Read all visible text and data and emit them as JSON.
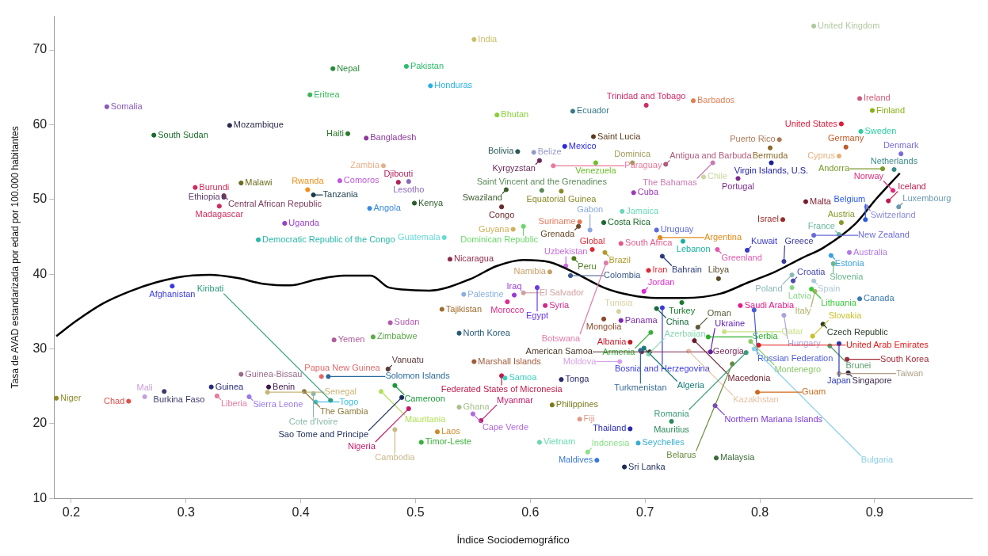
{
  "chart_data": {
    "type": "scatter",
    "xlabel": "Índice Sociodemográfico",
    "ylabel": "Tasa de AVAD estandarizada por edad por 100.000 habitantes",
    "xlim": [
      0.185,
      0.985
    ],
    "ylim": [
      10,
      74.5
    ],
    "xticks": [
      0.2,
      0.3,
      0.4,
      0.5,
      0.6,
      0.7,
      0.8,
      0.9
    ],
    "yticks": [
      10,
      20,
      30,
      40,
      50,
      60,
      70
    ],
    "marker": "circle",
    "legend": false,
    "series": [
      {
        "type": "scatter",
        "x": [
          0.187,
          0.25,
          0.264,
          0.281,
          0.322,
          0.327,
          0.348,
          0.355,
          0.372,
          0.371,
          0.403,
          0.411,
          0.413,
          0.426,
          0.418,
          0.424,
          0.429,
          0.463,
          0.476,
          0.288,
          0.363,
          0.231,
          0.272,
          0.338,
          0.428,
          0.408,
          0.441,
          0.457,
          0.434,
          0.485,
          0.308,
          0.348,
          0.406,
          0.333,
          0.333,
          0.329,
          0.411,
          0.386,
          0.46,
          0.499,
          0.494,
          0.472,
          0.492,
          0.551,
          0.513,
          0.571,
          0.589,
          0.603,
          0.63,
          0.637,
          0.701,
          0.655,
          0.657,
          0.689,
          0.742,
          0.718,
          0.608,
          0.61,
          0.627,
          0.62,
          0.579,
          0.575,
          0.643,
          0.642,
          0.664,
          0.68,
          0.69,
          0.679,
          0.71,
          0.713,
          0.733,
          0.594,
          0.525,
          0.585,
          0.631,
          0.654,
          0.665,
          0.652,
          0.638,
          0.617,
          0.53,
          0.523,
          0.478,
          0.538,
          0.542,
          0.58,
          0.586,
          0.594,
          0.613,
          0.606,
          0.635,
          0.666,
          0.703,
          0.715,
          0.699,
          0.732,
          0.764,
          0.763,
          0.789,
          0.821,
          0.829,
          0.828,
          0.847,
          0.828,
          0.845,
          0.848,
          0.887,
          0.862,
          0.864,
          0.878,
          0.869,
          0.847,
          0.871,
          0.82,
          0.84,
          0.893,
          0.892,
          0.921,
          0.912,
          0.916,
          0.917,
          0.907,
          0.869,
          0.923,
          0.875,
          0.888,
          0.871,
          0.898,
          0.887,
          0.847,
          0.817,
          0.809,
          0.81,
          0.759,
          0.751,
          0.781,
          0.664,
          0.679,
          0.677,
          0.71,
          0.715,
          0.705,
          0.687,
          0.697,
          0.696,
          0.699,
          0.704,
          0.703,
          0.678,
          0.743,
          0.757,
          0.738,
          0.746,
          0.755,
          0.769,
          0.783,
          0.795,
          0.821,
          0.788,
          0.776,
          0.792,
          0.799,
          0.795,
          0.798,
          0.761,
          0.762,
          0.723,
          0.687,
          0.694,
          0.682,
          0.846,
          0.855,
          0.861,
          0.869,
          0.876,
          0.877,
          0.869,
          0.482,
          0.47,
          0.488,
          0.494,
          0.505,
          0.482,
          0.519,
          0.538,
          0.551,
          0.575,
          0.578,
          0.55,
          0.557,
          0.608,
          0.619,
          0.627,
          0.643,
          0.658,
          0.65
        ],
        "values": [
          23.4,
          23.0,
          23.6,
          24.3,
          24.9,
          23.7,
          26.6,
          23.6,
          24.9,
          24.2,
          24.3,
          24.0,
          22.9,
          23.1,
          26.3,
          26.3,
          31.2,
          31.6,
          27.3,
          38.4,
          44.6,
          62.4,
          58.6,
          59.9,
          67.5,
          64.0,
          58.8,
          58.2,
          52.5,
          52.3,
          51.6,
          52.2,
          51.3,
          50.5,
          50.3,
          49.1,
          50.6,
          46.8,
          48.8,
          49.5,
          52.4,
          54.5,
          67.8,
          71.4,
          65.2,
          61.3,
          56.4,
          56.3,
          57.1,
          61.8,
          62.6,
          58.4,
          54.9,
          54.9,
          63.2,
          54.7,
          55.2,
          51.2,
          51.1,
          54.5,
          51.3,
          49.0,
          47.0,
          46.4,
          46.9,
          48.4,
          50.9,
          44.1,
          45.9,
          44.9,
          44.4,
          46.4,
          44.9,
          46.0,
          41.1,
          43.3,
          42.9,
          45.9,
          42.1,
          40.3,
          42.0,
          35.3,
          33.5,
          32.1,
          37.3,
          36.3,
          37.2,
          37.5,
          35.8,
          38.2,
          39.8,
          41.5,
          40.5,
          42.4,
          37.7,
          36.2,
          39.4,
          43.3,
          43.2,
          41.7,
          39.1,
          39.9,
          39.1,
          38.2,
          38.0,
          37.7,
          36.7,
          42.5,
          41.4,
          42.9,
          45.3,
          45.2,
          46.9,
          47.3,
          49.7,
          49.0,
          47.3,
          49.0,
          49.8,
          51.2,
          54.0,
          54.1,
          55.8,
          56.1,
          57.0,
          59.1,
          60.1,
          61.9,
          63.5,
          73.2,
          58.0,
          56.9,
          54.9,
          54.9,
          53.0,
          52.8,
          34.0,
          33.8,
          35.0,
          35.4,
          35.5,
          32.2,
          30.9,
          29.6,
          29.8,
          30.1,
          29.6,
          29.3,
          28.3,
          31.1,
          29.6,
          29.7,
          32.9,
          31.6,
          32.3,
          35.8,
          35.2,
          34.5,
          29.5,
          28.0,
          31.0,
          30.5,
          30.0,
          24.2,
          22.4,
          15.4,
          20.3,
          19.3,
          17.4,
          14.2,
          31.7,
          33.3,
          30.4,
          30.7,
          28.6,
          26.8,
          26.7,
          25.1,
          24.3,
          23.5,
          22.0,
          17.5,
          19.2,
          18.9,
          22.2,
          28.3,
          26.4,
          26.1,
          21.3,
          20.4,
          17.5,
          22.5,
          25.9,
          20.6,
          15.1,
          16.2
        ],
        "colors": [
          "#8b8b2a",
          "#e0504a",
          "#c8a0d8",
          "#3a3a6a",
          "#2a2a7a",
          "#e87aa0",
          "#9a6a8a",
          "#9a7ae8",
          "#3a1a4a",
          "#c8b47a",
          "#8a7a3a",
          "#8ab8a8",
          "#40c0e0",
          "#2a9a7a",
          "#e06a6a",
          "#2a6a9a",
          "#b05a9a",
          "#5aaa4a",
          "#5a3a3a",
          "#3a3ae0",
          "#2ab8a8",
          "#8a5ab8",
          "#1a6a2a",
          "#2a2a4a",
          "#2a8a3a",
          "#3ab85a",
          "#2a7a2a",
          "#8a3a9a",
          "#c05ad8",
          "#b0205a",
          "#d02a5a",
          "#6a6a1a",
          "#f0901a",
          "#7a3a5a",
          "#5a3a6a",
          "#d02a5a",
          "#1a3a4a",
          "#9a40c8",
          "#3a8ae0",
          "#2a5a2a",
          "#8a6ab8",
          "#e8b08a",
          "#2ac06a",
          "#c8c06a",
          "#2ab0e0",
          "#8ad03a",
          "#2a5a5a",
          "#9a9ac8",
          "#2a2ae0",
          "#3a7a8a",
          "#d02a6a",
          "#5a3a1a",
          "#6ac02a",
          "#a09a5a",
          "#e0805a",
          "#b05a7a",
          "#6a2a5a",
          "#5a8a5a",
          "#8a8a2a",
          "#e87a9a",
          "#3a5a2a",
          "#6a2a2a",
          "#e07a5a",
          "#6a4a2a",
          "#1a6a2a",
          "#6ad8b8",
          "#9a3ab8",
          "#e05a8a",
          "#5a6ad8",
          "#e08a1a",
          "#1ab0a0",
          "#6ad86a",
          "#6ad8d8",
          "#d0b05a",
          "#c86ae0",
          "#e02a3a",
          "#b09a2a",
          "#8aa8e0",
          "#4a7a1a",
          "#c8a06a",
          "#8a2a4a",
          "#a06a2a",
          "#b05ab0",
          "#2a5a7a",
          "#8ab0e0",
          "#e02a8a",
          "#9a3ad8",
          "#d0a0a0",
          "#d02a8a",
          "#6a3ae0",
          "#3a5a8a",
          "#e07aa8",
          "#e02a3a",
          "#2a3a7a",
          "#e02ad0",
          "#1a7a2a",
          "#5a4a2a",
          "#e05ab0",
          "#3a3ac8",
          "#3a3a9a",
          "#4a4ab0",
          "#8ab8b8",
          "#b0c8d8",
          "#8ad88a",
          "#3ac83a",
          "#b0b06a",
          "#3a7ab0",
          "#3aa0e0",
          "#6ab88a",
          "#b07ae0",
          "#6ab89a",
          "#6a6ad8",
          "#8a9a2a",
          "#9a2a2a",
          "#7a1a2a",
          "#8a8ad8",
          "#2a5ae0",
          "#6a9ab0",
          "#c01a4a",
          "#e02a7a",
          "#3a8a8a",
          "#7a9a2a",
          "#e8b07a",
          "#7a6ad8",
          "#c05a2a",
          "#2ad0a0",
          "#e01a3a",
          "#8ab01a",
          "#d05a7a",
          "#b0c8a0",
          "#b07a5a",
          "#8a6a2a",
          "#1a1a9a",
          "#c87ab0",
          "#c8d8a0",
          "#7a2a8a",
          "#8a4a2a",
          "#7a2ab0",
          "#d8d0a0",
          "#1a6a3a",
          "#3a3ae0",
          "#3ab03a",
          "#c01a2a",
          "#7a2a5a",
          "#3a6a9a",
          "#1a7a7a",
          "#4a3a2a",
          "#8ad8b0",
          "#d8a0e8",
          "#6a1a2a",
          "#5a1ab0",
          "#e8c0a0",
          "#5a5a3a",
          "#2ab02a",
          "#c8e08a",
          "#e01a8a",
          "#4a5ad8",
          "#b0a0e0",
          "#3a9a7a",
          "#6a8a3a",
          "#8ac86a",
          "#e01a1a",
          "#8ad0e8",
          "#d06a1a",
          "#7a3ad8",
          "#3a6a3a",
          "#2a8a5a",
          "#2a2ab0",
          "#3ab0d0",
          "#1a2a5a",
          "#c8c02a",
          "#2a3a2a",
          "#5a9a6a",
          "#2a3ab0",
          "#a02a3a",
          "#3a2a4a",
          "#b0a08a",
          "#1a9a3a",
          "#b0e05a",
          "#1a2a5a",
          "#c01a6a",
          "#3ab03a",
          "#c8b88a",
          "#d08a2a",
          "#a8c08a",
          "#a05a3a",
          "#c01a4a",
          "#3ad0c0",
          "#b06ae0",
          "#c01a6a",
          "#6ad8b0",
          "#7a7a1a",
          "#2a2a6a",
          "#e09a8a",
          "#3a7ad8",
          "#8ae08a"
        ]
      },
      {
        "type": "line",
        "color": "#000000",
        "marker": "none",
        "x": [
          0.187,
          0.204,
          0.228,
          0.251,
          0.274,
          0.298,
          0.321,
          0.344,
          0.368,
          0.391,
          0.414,
          0.438,
          0.461,
          0.477,
          0.512,
          0.547,
          0.571,
          0.594,
          0.617,
          0.641,
          0.664,
          0.687,
          0.71,
          0.734,
          0.766,
          0.79,
          0.813,
          0.836,
          0.855,
          0.883,
          0.901,
          0.922
        ],
        "values": [
          31.7,
          33.7,
          36.1,
          37.7,
          38.9,
          39.7,
          39.9,
          39.5,
          38.7,
          38.5,
          39.3,
          39.8,
          39.8,
          38.2,
          37.8,
          39.3,
          41.1,
          41.9,
          41.6,
          40.0,
          38.2,
          37.2,
          36.8,
          36.8,
          37.4,
          38.9,
          40.3,
          42.1,
          43.5,
          46.7,
          50.0,
          53.5
        ]
      }
    ],
    "annotations": [
      {
        "text": "Niger",
        "x": 0.187,
        "y": 23.4
      },
      {
        "text": "Chad",
        "x": 0.25,
        "y": 23.0
      },
      {
        "text": "Mali",
        "x": 0.264,
        "y": 23.6
      },
      {
        "text": "Burkina Faso",
        "x": 0.281,
        "y": 24.3
      },
      {
        "text": "Guinea",
        "x": 0.322,
        "y": 24.9
      },
      {
        "text": "Liberia",
        "x": 0.327,
        "y": 23.7
      },
      {
        "text": "Guinea-Bissau",
        "x": 0.348,
        "y": 26.6
      },
      {
        "text": "Sierra Leone",
        "x": 0.355,
        "y": 23.6
      },
      {
        "text": "Benin",
        "x": 0.372,
        "y": 24.9
      },
      {
        "text": "Senegal",
        "x": 0.371,
        "y": 24.2
      },
      {
        "text": "The Gambia",
        "x": 0.403,
        "y": 24.3
      },
      {
        "text": "Cote d'Ivoire",
        "x": 0.411,
        "y": 24.0
      },
      {
        "text": "Togo",
        "x": 0.413,
        "y": 22.9
      },
      {
        "text": "Kiribati",
        "x": 0.426,
        "y": 23.1
      },
      {
        "text": "Papua New Guinea",
        "x": 0.418,
        "y": 26.3
      },
      {
        "text": "Solomon Islands",
        "x": 0.424,
        "y": 26.3
      },
      {
        "text": "Yemen",
        "x": 0.429,
        "y": 31.2
      },
      {
        "text": "Zimbabwe",
        "x": 0.463,
        "y": 31.6
      },
      {
        "text": "Vanuatu",
        "x": 0.476,
        "y": 27.3
      },
      {
        "text": "Afghanistan",
        "x": 0.288,
        "y": 38.4
      },
      {
        "text": "Democratic Republic of the Congo",
        "x": 0.363,
        "y": 44.6
      },
      {
        "text": "Somalia",
        "x": 0.231,
        "y": 62.4
      },
      {
        "text": "South Sudan",
        "x": 0.272,
        "y": 58.6
      },
      {
        "text": "Mozambique",
        "x": 0.338,
        "y": 59.9
      },
      {
        "text": "Nepal",
        "x": 0.428,
        "y": 67.5
      },
      {
        "text": "Eritrea",
        "x": 0.408,
        "y": 64.0
      },
      {
        "text": "Haiti",
        "x": 0.441,
        "y": 58.8
      },
      {
        "text": "Bangladesh",
        "x": 0.457,
        "y": 58.2
      },
      {
        "text": "Comoros",
        "x": 0.434,
        "y": 52.5
      },
      {
        "text": "Djibouti",
        "x": 0.485,
        "y": 52.3
      },
      {
        "text": "Burundi",
        "x": 0.308,
        "y": 51.6
      },
      {
        "text": "Malawi",
        "x": 0.348,
        "y": 52.2
      },
      {
        "text": "Rwanda",
        "x": 0.406,
        "y": 51.3
      },
      {
        "text": "Central African Republic",
        "x": 0.333,
        "y": 50.5
      },
      {
        "text": "Ethiopia",
        "x": 0.333,
        "y": 50.3
      },
      {
        "text": "Madagascar",
        "x": 0.329,
        "y": 49.1
      },
      {
        "text": "Tanzania",
        "x": 0.411,
        "y": 50.6
      },
      {
        "text": "Uganda",
        "x": 0.386,
        "y": 46.8
      },
      {
        "text": "Angola",
        "x": 0.46,
        "y": 48.8
      },
      {
        "text": "Kenya",
        "x": 0.499,
        "y": 49.5
      },
      {
        "text": "Lesotho",
        "x": 0.494,
        "y": 52.4
      },
      {
        "text": "Zambia",
        "x": 0.472,
        "y": 54.5
      },
      {
        "text": "Pakistan",
        "x": 0.492,
        "y": 67.8
      },
      {
        "text": "India",
        "x": 0.551,
        "y": 71.4
      },
      {
        "text": "Honduras",
        "x": 0.513,
        "y": 65.2
      },
      {
        "text": "Bhutan",
        "x": 0.571,
        "y": 61.3
      },
      {
        "text": "Bolivia",
        "x": 0.589,
        "y": 56.4
      },
      {
        "text": "Belize",
        "x": 0.603,
        "y": 56.3
      },
      {
        "text": "Mexico",
        "x": 0.63,
        "y": 57.1
      },
      {
        "text": "Ecuador",
        "x": 0.637,
        "y": 61.8
      },
      {
        "text": "Trinidad and Tobago",
        "x": 0.701,
        "y": 62.6
      },
      {
        "text": "Saint Lucia",
        "x": 0.655,
        "y": 58.4
      },
      {
        "text": "Venezuela",
        "x": 0.657,
        "y": 54.9
      },
      {
        "text": "Dominica",
        "x": 0.689,
        "y": 54.9
      },
      {
        "text": "Barbados",
        "x": 0.742,
        "y": 63.2
      },
      {
        "text": "Antigua and Barbuda",
        "x": 0.718,
        "y": 54.7
      },
      {
        "text": "Kyrgyzstan",
        "x": 0.608,
        "y": 55.2
      },
      {
        "text": "Saint Vincent and the Grenadines",
        "x": 0.61,
        "y": 51.2
      },
      {
        "text": "Equatorial Guinea",
        "x": 0.627,
        "y": 51.1
      },
      {
        "text": "Paraguay",
        "x": 0.62,
        "y": 54.5
      },
      {
        "text": "Swaziland",
        "x": 0.579,
        "y": 51.3
      },
      {
        "text": "Congo",
        "x": 0.575,
        "y": 49.0
      },
      {
        "text": "Suriname",
        "x": 0.643,
        "y": 47.0
      },
      {
        "text": "Grenada",
        "x": 0.642,
        "y": 46.4
      },
      {
        "text": "Costa Rica",
        "x": 0.664,
        "y": 46.9
      },
      {
        "text": "Jamaica",
        "x": 0.68,
        "y": 48.4
      },
      {
        "text": "Cuba",
        "x": 0.69,
        "y": 50.9
      },
      {
        "text": "South Africa",
        "x": 0.679,
        "y": 44.1
      },
      {
        "text": "Uruguay",
        "x": 0.71,
        "y": 45.9
      },
      {
        "text": "Argentina",
        "x": 0.713,
        "y": 44.9
      },
      {
        "text": "Lebanon",
        "x": 0.733,
        "y": 44.4
      },
      {
        "text": "Dominican Republic",
        "x": 0.594,
        "y": 46.4
      },
      {
        "text": "Guatemala",
        "x": 0.525,
        "y": 44.9
      },
      {
        "text": "Guyana",
        "x": 0.585,
        "y": 46.0
      },
      {
        "text": "Uzbekistan",
        "x": 0.631,
        "y": 41.1
      },
      {
        "text": "Global",
        "x": 0.654,
        "y": 43.3
      },
      {
        "text": "Brazil",
        "x": 0.665,
        "y": 42.9
      },
      {
        "text": "Gabon",
        "x": 0.652,
        "y": 45.9
      },
      {
        "text": "Peru",
        "x": 0.638,
        "y": 42.1
      },
      {
        "text": "Namibia",
        "x": 0.617,
        "y": 40.3
      },
      {
        "text": "Nicaragua",
        "x": 0.53,
        "y": 42.0
      },
      {
        "text": "Tajikistan",
        "x": 0.523,
        "y": 35.3
      },
      {
        "text": "Sudan",
        "x": 0.478,
        "y": 33.5
      },
      {
        "text": "North Korea",
        "x": 0.538,
        "y": 32.1
      },
      {
        "text": "Palestine",
        "x": 0.542,
        "y": 37.3
      },
      {
        "text": "Morocco",
        "x": 0.58,
        "y": 36.3
      },
      {
        "text": "Iraq",
        "x": 0.586,
        "y": 37.2
      },
      {
        "text": "El Salvador",
        "x": 0.594,
        "y": 37.5
      },
      {
        "text": "Syria",
        "x": 0.613,
        "y": 35.8
      },
      {
        "text": "Egypt",
        "x": 0.606,
        "y": 38.2
      },
      {
        "text": "Colombia",
        "x": 0.635,
        "y": 39.8
      },
      {
        "text": "Botswana",
        "x": 0.666,
        "y": 41.5
      },
      {
        "text": "Iran",
        "x": 0.703,
        "y": 40.5
      },
      {
        "text": "Bahrain",
        "x": 0.715,
        "y": 42.4
      },
      {
        "text": "Jordan",
        "x": 0.699,
        "y": 37.7
      },
      {
        "text": "Turkey",
        "x": 0.732,
        "y": 36.2
      },
      {
        "text": "Libya",
        "x": 0.764,
        "y": 39.4
      },
      {
        "text": "Greenland",
        "x": 0.763,
        "y": 43.3
      },
      {
        "text": "Kuwait",
        "x": 0.789,
        "y": 43.2
      },
      {
        "text": "Greece",
        "x": 0.821,
        "y": 41.7
      },
      {
        "text": "Croatia",
        "x": 0.829,
        "y": 39.1
      },
      {
        "text": "Poland",
        "x": 0.828,
        "y": 39.9
      },
      {
        "text": "Spain",
        "x": 0.847,
        "y": 39.1
      },
      {
        "text": "Latvia",
        "x": 0.828,
        "y": 38.2
      },
      {
        "text": "Lithuania",
        "x": 0.845,
        "y": 38.0
      },
      {
        "text": "Italy",
        "x": 0.848,
        "y": 37.7
      },
      {
        "text": "Canada",
        "x": 0.887,
        "y": 36.7
      },
      {
        "text": "Estonia",
        "x": 0.862,
        "y": 42.5
      },
      {
        "text": "Slovenia",
        "x": 0.864,
        "y": 41.4
      },
      {
        "text": "Australia",
        "x": 0.878,
        "y": 42.9
      },
      {
        "text": "France",
        "x": 0.869,
        "y": 45.3
      },
      {
        "text": "New Zealand",
        "x": 0.847,
        "y": 45.2
      },
      {
        "text": "Austria",
        "x": 0.871,
        "y": 46.9
      },
      {
        "text": "Israel",
        "x": 0.82,
        "y": 47.3
      },
      {
        "text": "Malta",
        "x": 0.84,
        "y": 49.7
      },
      {
        "text": "Switzerland",
        "x": 0.893,
        "y": 49.0
      },
      {
        "text": "Belgium",
        "x": 0.892,
        "y": 47.3
      },
      {
        "text": "Luxembourg",
        "x": 0.921,
        "y": 49.0
      },
      {
        "text": "Iceland",
        "x": 0.912,
        "y": 49.8
      },
      {
        "text": "Norway",
        "x": 0.916,
        "y": 51.2
      },
      {
        "text": "Netherlands",
        "x": 0.917,
        "y": 54.0
      },
      {
        "text": "Andorra",
        "x": 0.907,
        "y": 54.1
      },
      {
        "text": "Cyprus",
        "x": 0.869,
        "y": 55.8
      },
      {
        "text": "Denmark",
        "x": 0.923,
        "y": 56.1
      },
      {
        "text": "Germany",
        "x": 0.875,
        "y": 57.0
      },
      {
        "text": "Sweden",
        "x": 0.888,
        "y": 59.1
      },
      {
        "text": "United States",
        "x": 0.871,
        "y": 60.1
      },
      {
        "text": "Finland",
        "x": 0.898,
        "y": 61.9
      },
      {
        "text": "Ireland",
        "x": 0.887,
        "y": 63.5
      },
      {
        "text": "United Kingdom",
        "x": 0.847,
        "y": 73.2
      },
      {
        "text": "Puerto Rico",
        "x": 0.817,
        "y": 58.0
      },
      {
        "text": "Bermuda",
        "x": 0.809,
        "y": 56.9
      },
      {
        "text": "Virgin Islands, U.S.",
        "x": 0.81,
        "y": 54.9
      },
      {
        "text": "The Bahamas",
        "x": 0.759,
        "y": 54.9
      },
      {
        "text": "Chile",
        "x": 0.751,
        "y": 53.0
      },
      {
        "text": "Portugal",
        "x": 0.781,
        "y": 52.8
      },
      {
        "text": "Mongolia",
        "x": 0.664,
        "y": 34.0
      },
      {
        "text": "Panama",
        "x": 0.679,
        "y": 33.8
      },
      {
        "text": "Tunisia",
        "x": 0.677,
        "y": 35.0
      },
      {
        "text": "China",
        "x": 0.71,
        "y": 35.4
      },
      {
        "text": "Bosnia and Herzegovina",
        "x": 0.715,
        "y": 35.5
      },
      {
        "text": "Armenia",
        "x": 0.705,
        "y": 32.2
      },
      {
        "text": "Albania",
        "x": 0.687,
        "y": 30.9
      },
      {
        "text": "Georgia",
        "x": 0.697,
        "y": 29.6
      },
      {
        "text": "Turkmenistan",
        "x": 0.696,
        "y": 29.8
      },
      {
        "text": "Algeria",
        "x": 0.699,
        "y": 30.1
      },
      {
        "text": "American Samoa",
        "x": 0.704,
        "y": 29.6
      },
      {
        "text": "Azerbaijan",
        "x": 0.703,
        "y": 29.3
      },
      {
        "text": "Moldova",
        "x": 0.678,
        "y": 28.3
      },
      {
        "text": "Macedonia",
        "x": 0.743,
        "y": 31.1
      },
      {
        "text": "Ukraine",
        "x": 0.757,
        "y": 29.6
      },
      {
        "text": "Kazakhstan",
        "x": 0.738,
        "y": 29.7
      },
      {
        "text": "Oman",
        "x": 0.746,
        "y": 32.9
      },
      {
        "text": "Serbia",
        "x": 0.755,
        "y": 31.6
      },
      {
        "text": "Qatar",
        "x": 0.769,
        "y": 32.3
      },
      {
        "text": "Saudi Arabia",
        "x": 0.783,
        "y": 35.8
      },
      {
        "text": "Russian Federation",
        "x": 0.795,
        "y": 35.2
      },
      {
        "text": "Hungary",
        "x": 0.821,
        "y": 34.5
      },
      {
        "text": "Romania",
        "x": 0.788,
        "y": 29.5
      },
      {
        "text": "Belarus",
        "x": 0.776,
        "y": 28.0
      },
      {
        "text": "Montenegro",
        "x": 0.792,
        "y": 31.0
      },
      {
        "text": "United Arab Emirates",
        "x": 0.799,
        "y": 30.5
      },
      {
        "text": "Bulgaria",
        "x": 0.795,
        "y": 30.0
      },
      {
        "text": "Guam",
        "x": 0.798,
        "y": 24.2
      },
      {
        "text": "Northern Mariana Islands",
        "x": 0.761,
        "y": 22.4
      },
      {
        "text": "Malaysia",
        "x": 0.762,
        "y": 15.4
      },
      {
        "text": "Mauritius",
        "x": 0.723,
        "y": 20.3
      },
      {
        "text": "Thailand",
        "x": 0.687,
        "y": 19.3
      },
      {
        "text": "Seychelles",
        "x": 0.694,
        "y": 17.4
      },
      {
        "text": "Sri Lanka",
        "x": 0.682,
        "y": 14.2
      },
      {
        "text": "Slovakia",
        "x": 0.846,
        "y": 31.7
      },
      {
        "text": "Czech Republic",
        "x": 0.855,
        "y": 33.3
      },
      {
        "text": "Brunei",
        "x": 0.861,
        "y": 30.4
      },
      {
        "text": "Japan",
        "x": 0.869,
        "y": 30.7
      },
      {
        "text": "South Korea",
        "x": 0.876,
        "y": 28.6
      },
      {
        "text": "Singapore",
        "x": 0.877,
        "y": 26.8
      },
      {
        "text": "Taiwan",
        "x": 0.869,
        "y": 26.7
      },
      {
        "text": "Cameroon",
        "x": 0.482,
        "y": 25.1
      },
      {
        "text": "Mauritania",
        "x": 0.47,
        "y": 24.3
      },
      {
        "text": "Sao Tome and Principe",
        "x": 0.488,
        "y": 23.5
      },
      {
        "text": "Nigeria",
        "x": 0.494,
        "y": 22.0
      },
      {
        "text": "Timor-Leste",
        "x": 0.505,
        "y": 17.5
      },
      {
        "text": "Cambodia",
        "x": 0.482,
        "y": 19.2
      },
      {
        "text": "Laos",
        "x": 0.519,
        "y": 18.9
      },
      {
        "text": "Ghana",
        "x": 0.538,
        "y": 22.2
      },
      {
        "text": "Marshall Islands",
        "x": 0.551,
        "y": 28.3
      },
      {
        "text": "Federated States of Micronesia",
        "x": 0.575,
        "y": 26.4
      },
      {
        "text": "Samoa",
        "x": 0.578,
        "y": 26.1
      },
      {
        "text": "Cape Verde",
        "x": 0.55,
        "y": 21.3
      },
      {
        "text": "Myanmar",
        "x": 0.557,
        "y": 20.4
      },
      {
        "text": "Vietnam",
        "x": 0.608,
        "y": 17.5
      },
      {
        "text": "Philippines",
        "x": 0.619,
        "y": 22.5
      },
      {
        "text": "Tonga",
        "x": 0.627,
        "y": 25.9
      },
      {
        "text": "Fiji",
        "x": 0.643,
        "y": 20.6
      },
      {
        "text": "Maldives",
        "x": 0.658,
        "y": 15.1
      },
      {
        "text": "Indonesia",
        "x": 0.65,
        "y": 16.2
      }
    ]
  }
}
